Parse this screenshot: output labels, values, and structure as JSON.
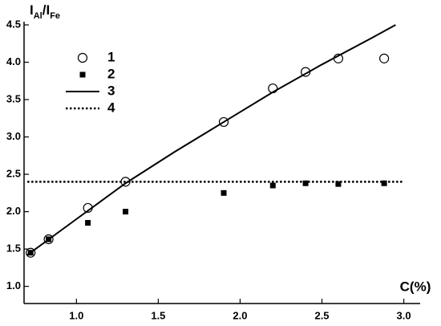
{
  "chart_data": {
    "type": "scatter",
    "y_label_parts": [
      {
        "text": "I"
      },
      {
        "text": "Al",
        "sub": true
      },
      {
        "text": "/I"
      },
      {
        "text": "Fe",
        "sub": true
      }
    ],
    "x_label": "C(%)",
    "xlim": [
      0.68,
      3.1
    ],
    "ylim": [
      0.77,
      4.5
    ],
    "xticks": [
      {
        "value": 1,
        "label": "1.0"
      },
      {
        "value": 1.5,
        "label": "1.5"
      },
      {
        "value": 2,
        "label": "2.0"
      },
      {
        "value": 2.5,
        "label": "2.5"
      },
      {
        "value": 3,
        "label": "3.0"
      }
    ],
    "yticks": [
      {
        "value": 1,
        "label": "1.0"
      },
      {
        "value": 1.5,
        "label": "1.5"
      },
      {
        "value": 2,
        "label": "2.0"
      },
      {
        "value": 2.5,
        "label": "2.5"
      },
      {
        "value": 3,
        "label": "3.0"
      },
      {
        "value": 3.5,
        "label": "3.5"
      },
      {
        "value": 4,
        "label": "4.0"
      },
      {
        "value": 4.5,
        "label": "4.5"
      }
    ],
    "series": [
      {
        "name": "1",
        "style": "circle",
        "color": "#000000",
        "x": [
          0.72,
          0.83,
          1.07,
          1.3,
          1.9,
          2.2,
          2.4,
          2.6,
          2.88
        ],
        "values": [
          1.45,
          1.63,
          2.05,
          2.4,
          3.2,
          3.65,
          3.87,
          4.05,
          4.05
        ]
      },
      {
        "name": "2",
        "style": "square",
        "color": "#000000",
        "x": [
          0.72,
          0.83,
          1.07,
          1.3,
          1.9,
          2.2,
          2.4,
          2.6,
          2.88
        ],
        "values": [
          1.45,
          1.63,
          1.85,
          2.0,
          2.25,
          2.35,
          2.38,
          2.37,
          2.38
        ]
      },
      {
        "name": "3",
        "style": "line",
        "color": "#000000",
        "x": [
          0.7,
          1.0,
          1.3,
          1.6,
          1.9,
          2.2,
          2.5,
          2.8,
          2.95
        ],
        "values": [
          1.42,
          1.9,
          2.38,
          2.8,
          3.2,
          3.6,
          3.97,
          4.32,
          4.5
        ]
      },
      {
        "name": "4",
        "style": "dotted",
        "color": "#000000",
        "x": [
          0.7,
          3.0
        ],
        "values": [
          2.4,
          2.4
        ]
      }
    ]
  }
}
